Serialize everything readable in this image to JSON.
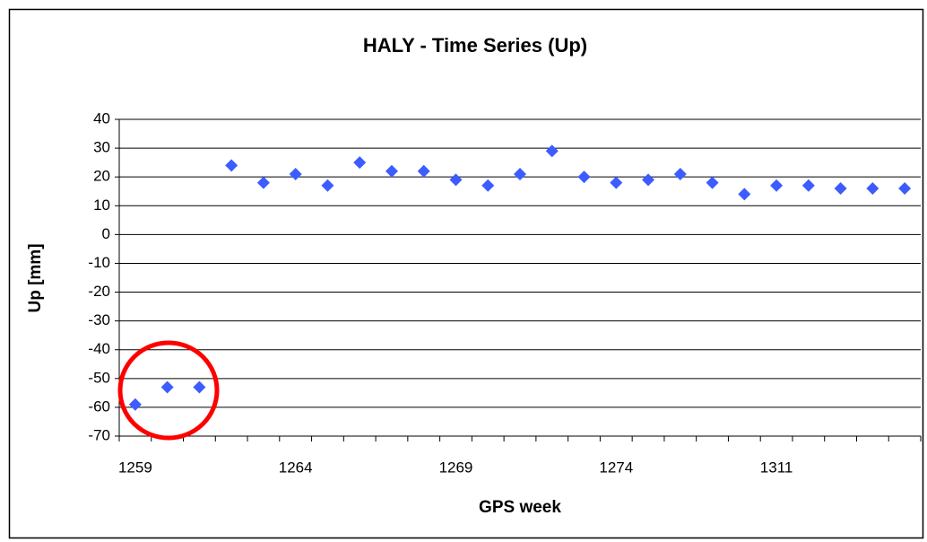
{
  "chart_data": {
    "type": "scatter",
    "title": "HALY - Time Series (Up)",
    "x_label": "GPS week",
    "y_label": "Up [mm]",
    "categories": [
      "1259",
      null,
      null,
      null,
      null,
      "1264",
      null,
      null,
      null,
      null,
      "1269",
      null,
      null,
      null,
      null,
      "1274",
      null,
      null,
      null,
      null,
      "1311",
      null,
      null,
      null,
      null
    ],
    "values": [
      -59,
      -53,
      -53,
      24,
      18,
      21,
      17,
      25,
      22,
      22,
      19,
      17,
      21,
      29,
      20,
      18,
      19,
      21,
      18,
      14,
      17,
      17,
      16,
      16,
      16
    ],
    "color": "#3d5cff",
    "ylim": [
      -70,
      40
    ],
    "yticks": [
      -70,
      -60,
      -50,
      -40,
      -30,
      -20,
      -10,
      0,
      10,
      20,
      30,
      40
    ],
    "grid": true
  }
}
